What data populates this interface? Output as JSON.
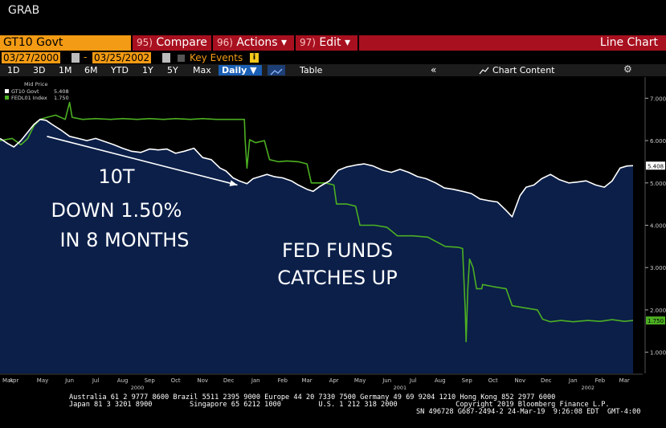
{
  "window": {
    "title": "GRAB"
  },
  "toolbar": {
    "ticker": "GT10 Govt",
    "compare": {
      "num": "95)",
      "label": "Compare"
    },
    "actions": {
      "num": "96)",
      "label": "Actions ▾"
    },
    "edit": {
      "num": "97)",
      "label": "Edit ▾"
    },
    "chart_type": "Line Chart"
  },
  "dates": {
    "start": "03/27/2000",
    "separator": "-",
    "end": "03/25/2002",
    "key_events": "Key Events",
    "key_events_icon": "i"
  },
  "range": {
    "buttons": [
      "1D",
      "3D",
      "1M",
      "6M",
      "YTD",
      "1Y",
      "5Y",
      "Max"
    ],
    "frequency": "Daily ▼",
    "table": "Table",
    "chart_content": "Chart Content",
    "collapse": "«",
    "settings": "⚙"
  },
  "legend": {
    "title": "Mid Price",
    "items": [
      {
        "name": "GT10 Govt",
        "value": "5.408",
        "color": "#ffffff"
      },
      {
        "name": "FEDL01 Index",
        "value": "1.750",
        "color": "#4caf22"
      }
    ]
  },
  "annotations": {
    "left": [
      "10T",
      "DOWN 1.50%",
      "IN 8 MONTHS"
    ],
    "right": [
      "FED FUNDS",
      "CATCHES UP"
    ]
  },
  "chart_data": {
    "type": "line",
    "x_tick_labels": [
      "Mar",
      "Apr",
      "May",
      "Jun",
      "Jul",
      "Aug",
      "Sep",
      "Oct",
      "Nov",
      "Dec",
      "Jan",
      "Feb",
      "Mar",
      "Apr",
      "May",
      "Jun",
      "Jul",
      "Aug",
      "Sep",
      "Oct",
      "Nov",
      "Dec",
      "Jan",
      "Feb",
      "Mar"
    ],
    "year_labels": [
      "2000",
      "2001",
      "2002"
    ],
    "y_ticks": [
      "7.000",
      "6.000",
      "5.000",
      "4.000",
      "3.000",
      "2.000",
      "1.000"
    ],
    "ylim": [
      0.5,
      7.5
    ],
    "xlim": [
      "2000-03-27",
      "2002-03-25"
    ],
    "last_value_labels": {
      "gt10": "5.408",
      "fedl01": "1.750"
    },
    "series": [
      {
        "name": "GT10 Govt",
        "color": "#ffffff",
        "fill": "#0b1f49",
        "points": [
          [
            "2000-03-27",
            6.05
          ],
          [
            "2000-04-05",
            5.93
          ],
          [
            "2000-04-12",
            5.85
          ],
          [
            "2000-04-20",
            6.0
          ],
          [
            "2000-04-28",
            6.2
          ],
          [
            "2000-05-05",
            6.38
          ],
          [
            "2000-05-12",
            6.5
          ],
          [
            "2000-05-19",
            6.48
          ],
          [
            "2000-05-26",
            6.38
          ],
          [
            "2000-06-05",
            6.25
          ],
          [
            "2000-06-15",
            6.1
          ],
          [
            "2000-06-25",
            6.05
          ],
          [
            "2000-07-05",
            6.0
          ],
          [
            "2000-07-15",
            6.05
          ],
          [
            "2000-07-25",
            5.98
          ],
          [
            "2000-08-05",
            5.9
          ],
          [
            "2000-08-15",
            5.82
          ],
          [
            "2000-08-25",
            5.75
          ],
          [
            "2000-09-05",
            5.72
          ],
          [
            "2000-09-15",
            5.8
          ],
          [
            "2000-09-25",
            5.78
          ],
          [
            "2000-10-05",
            5.8
          ],
          [
            "2000-10-15",
            5.7
          ],
          [
            "2000-10-25",
            5.75
          ],
          [
            "2000-11-05",
            5.82
          ],
          [
            "2000-11-15",
            5.6
          ],
          [
            "2000-11-25",
            5.55
          ],
          [
            "2000-12-05",
            5.35
          ],
          [
            "2000-12-12",
            5.28
          ],
          [
            "2000-12-20",
            5.12
          ],
          [
            "2000-12-27",
            5.05
          ],
          [
            "2001-01-05",
            4.98
          ],
          [
            "2001-01-12",
            5.1
          ],
          [
            "2001-01-20",
            5.15
          ],
          [
            "2001-01-28",
            5.2
          ],
          [
            "2001-02-05",
            5.15
          ],
          [
            "2001-02-15",
            5.12
          ],
          [
            "2001-02-25",
            5.05
          ],
          [
            "2001-03-05",
            4.95
          ],
          [
            "2001-03-15",
            4.85
          ],
          [
            "2001-03-22",
            4.8
          ],
          [
            "2001-03-30",
            4.92
          ],
          [
            "2001-04-10",
            5.05
          ],
          [
            "2001-04-20",
            5.3
          ],
          [
            "2001-04-30",
            5.38
          ],
          [
            "2001-05-10",
            5.42
          ],
          [
            "2001-05-20",
            5.45
          ],
          [
            "2001-05-30",
            5.4
          ],
          [
            "2001-06-10",
            5.3
          ],
          [
            "2001-06-20",
            5.25
          ],
          [
            "2001-06-30",
            5.32
          ],
          [
            "2001-07-10",
            5.25
          ],
          [
            "2001-07-20",
            5.15
          ],
          [
            "2001-07-30",
            5.1
          ],
          [
            "2001-08-10",
            5.0
          ],
          [
            "2001-08-20",
            4.88
          ],
          [
            "2001-08-30",
            4.85
          ],
          [
            "2001-09-10",
            4.8
          ],
          [
            "2001-09-20",
            4.75
          ],
          [
            "2001-09-30",
            4.62
          ],
          [
            "2001-10-10",
            4.58
          ],
          [
            "2001-10-20",
            4.55
          ],
          [
            "2001-10-30",
            4.35
          ],
          [
            "2001-11-06",
            4.2
          ],
          [
            "2001-11-15",
            4.7
          ],
          [
            "2001-11-22",
            4.9
          ],
          [
            "2001-12-01",
            4.95
          ],
          [
            "2001-12-10",
            5.1
          ],
          [
            "2001-12-20",
            5.2
          ],
          [
            "2001-12-30",
            5.08
          ],
          [
            "2002-01-10",
            5.0
          ],
          [
            "2002-01-20",
            5.02
          ],
          [
            "2002-01-30",
            5.05
          ],
          [
            "2002-02-10",
            4.95
          ],
          [
            "2002-02-20",
            4.9
          ],
          [
            "2002-03-01",
            5.05
          ],
          [
            "2002-03-10",
            5.35
          ],
          [
            "2002-03-18",
            5.4
          ],
          [
            "2002-03-25",
            5.408
          ]
        ]
      },
      {
        "name": "FEDL01 Index",
        "color": "#4caf22",
        "points": [
          [
            "2000-03-27",
            6.0
          ],
          [
            "2000-04-10",
            6.05
          ],
          [
            "2000-04-20",
            5.9
          ],
          [
            "2000-04-28",
            6.05
          ],
          [
            "2000-05-05",
            6.35
          ],
          [
            "2000-05-12",
            6.5
          ],
          [
            "2000-05-20",
            6.55
          ],
          [
            "2000-05-30",
            6.6
          ],
          [
            "2000-06-10",
            6.5
          ],
          [
            "2000-06-15",
            6.9
          ],
          [
            "2000-06-18",
            6.55
          ],
          [
            "2000-06-30",
            6.5
          ],
          [
            "2000-07-15",
            6.52
          ],
          [
            "2000-08-01",
            6.5
          ],
          [
            "2000-08-15",
            6.52
          ],
          [
            "2000-09-01",
            6.5
          ],
          [
            "2000-09-15",
            6.52
          ],
          [
            "2000-10-01",
            6.5
          ],
          [
            "2000-10-15",
            6.52
          ],
          [
            "2000-11-01",
            6.5
          ],
          [
            "2000-11-15",
            6.52
          ],
          [
            "2000-12-01",
            6.5
          ],
          [
            "2000-12-20",
            6.5
          ],
          [
            "2001-01-02",
            6.5
          ],
          [
            "2001-01-03",
            6.0
          ],
          [
            "2001-01-05",
            5.35
          ],
          [
            "2001-01-08",
            6.02
          ],
          [
            "2001-01-15",
            5.95
          ],
          [
            "2001-01-25",
            6.0
          ],
          [
            "2001-01-31",
            5.55
          ],
          [
            "2001-02-10",
            5.5
          ],
          [
            "2001-02-20",
            5.52
          ],
          [
            "2001-03-05",
            5.5
          ],
          [
            "2001-03-15",
            5.45
          ],
          [
            "2001-03-20",
            5.0
          ],
          [
            "2001-04-05",
            5.0
          ],
          [
            "2001-04-15",
            4.95
          ],
          [
            "2001-04-18",
            4.5
          ],
          [
            "2001-04-30",
            4.5
          ],
          [
            "2001-05-10",
            4.45
          ],
          [
            "2001-05-15",
            4.0
          ],
          [
            "2001-06-01",
            4.0
          ],
          [
            "2001-06-15",
            3.95
          ],
          [
            "2001-06-27",
            3.75
          ],
          [
            "2001-07-15",
            3.75
          ],
          [
            "2001-08-01",
            3.72
          ],
          [
            "2001-08-21",
            3.5
          ],
          [
            "2001-09-05",
            3.48
          ],
          [
            "2001-09-10",
            3.45
          ],
          [
            "2001-09-13",
            2.0
          ],
          [
            "2001-09-14",
            1.25
          ],
          [
            "2001-09-16",
            2.5
          ],
          [
            "2001-09-18",
            3.2
          ],
          [
            "2001-09-22",
            3.0
          ],
          [
            "2001-09-26",
            2.5
          ],
          [
            "2001-10-02",
            2.5
          ],
          [
            "2001-10-03",
            2.6
          ],
          [
            "2001-10-15",
            2.55
          ],
          [
            "2001-10-30",
            2.5
          ],
          [
            "2001-11-06",
            2.1
          ],
          [
            "2001-11-20",
            2.05
          ],
          [
            "2001-12-05",
            2.0
          ],
          [
            "2001-12-11",
            1.78
          ],
          [
            "2001-12-20",
            1.72
          ],
          [
            "2002-01-01",
            1.75
          ],
          [
            "2002-01-15",
            1.72
          ],
          [
            "2002-02-01",
            1.75
          ],
          [
            "2002-02-15",
            1.73
          ],
          [
            "2002-03-01",
            1.77
          ],
          [
            "2002-03-15",
            1.73
          ],
          [
            "2002-03-25",
            1.75
          ]
        ]
      }
    ]
  },
  "footer": {
    "line1": "Australia 61 2 9777 8600 Brazil 5511 2395 9000 Europe 44 20 7330 7500 Germany 49 69 9204 1210 Hong Kong 852 2977 6000",
    "line2": "Japan 81 3 3201 8900         Singapore 65 6212 1000         U.S. 1 212 318 2000              Copyright 2019 Bloomberg Finance L.P.",
    "line3": "SN 496728 G687-2494-2 24-Mar-19  9:26:08 EDT  GMT-4:00"
  }
}
